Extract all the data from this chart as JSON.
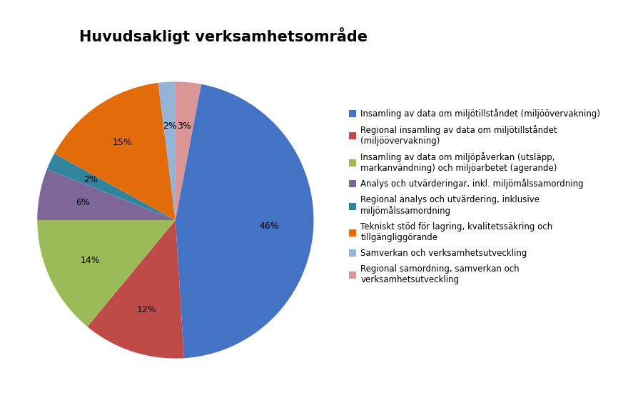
{
  "title": "Huvudsakligt verksamhetsområde",
  "slices": [
    {
      "label": "Insamling av data om miljötillståndet (miljöövervakning)",
      "pct": 46,
      "color": "#4472C4"
    },
    {
      "label": "Regional insamling av data om miljötillståndet\n(miljöövervakning)",
      "pct": 12,
      "color": "#BE4B48"
    },
    {
      "label": "Insamling av data om miljöpåverkan (utsläpp,\nmarkanvändning) och miljöarbetet (agerande)",
      "pct": 14,
      "color": "#9BBB59"
    },
    {
      "label": "Analys och utvärderingar, inkl. miljömålssamordning",
      "pct": 6,
      "color": "#7E6698"
    },
    {
      "label": "Regional analys och utvärdering, inklusive\nmiljömålssamordning",
      "pct": 2,
      "color": "#31849B"
    },
    {
      "label": "Tekniskt stöd för lagring, kvalitetssäkring och\ntillgängliggörande",
      "pct": 15,
      "color": "#E36C0A"
    },
    {
      "label": "Samverkan och verksamhetsutveckling",
      "pct": 2,
      "color": "#95B3D7"
    },
    {
      "label": "Regional samordning, samverkan och\nverksamhetsutveckling",
      "pct": 3,
      "color": "#D99694"
    }
  ],
  "title_fontsize": 15,
  "label_fontsize": 9,
  "legend_fontsize": 8.5,
  "background_color": "#FFFFFF",
  "clockwise_order": [
    7,
    0,
    1,
    2,
    3,
    4,
    5,
    6
  ],
  "startangle": 90
}
